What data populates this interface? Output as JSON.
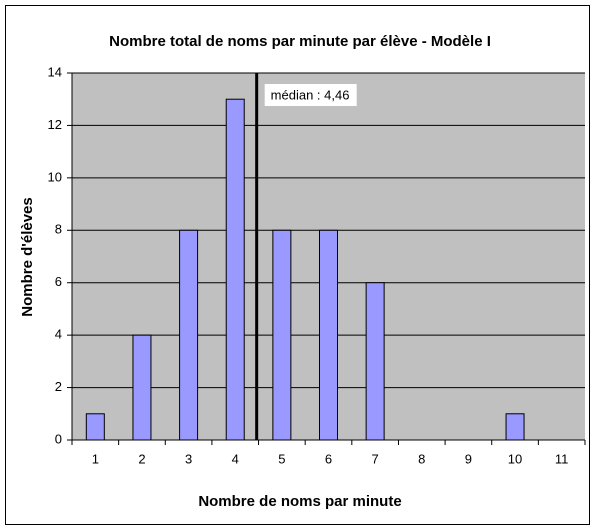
{
  "chart_data": {
    "type": "bar",
    "title": "Nombre total de noms par minute par élève - Modèle I",
    "xlabel": "Nombre de noms par minute",
    "ylabel": "Nombre d'élèves",
    "categories": [
      "1",
      "2",
      "3",
      "4",
      "5",
      "6",
      "7",
      "8",
      "9",
      "10",
      "11"
    ],
    "values": [
      1,
      4,
      8,
      13,
      8,
      8,
      6,
      0,
      0,
      1,
      0
    ],
    "color": "#9999ff",
    "ylim": [
      0,
      14
    ],
    "yticks": [
      0,
      2,
      4,
      6,
      8,
      10,
      12,
      14
    ],
    "grid": true,
    "median": {
      "value": 4.46,
      "label": "médian : 4,46"
    }
  }
}
